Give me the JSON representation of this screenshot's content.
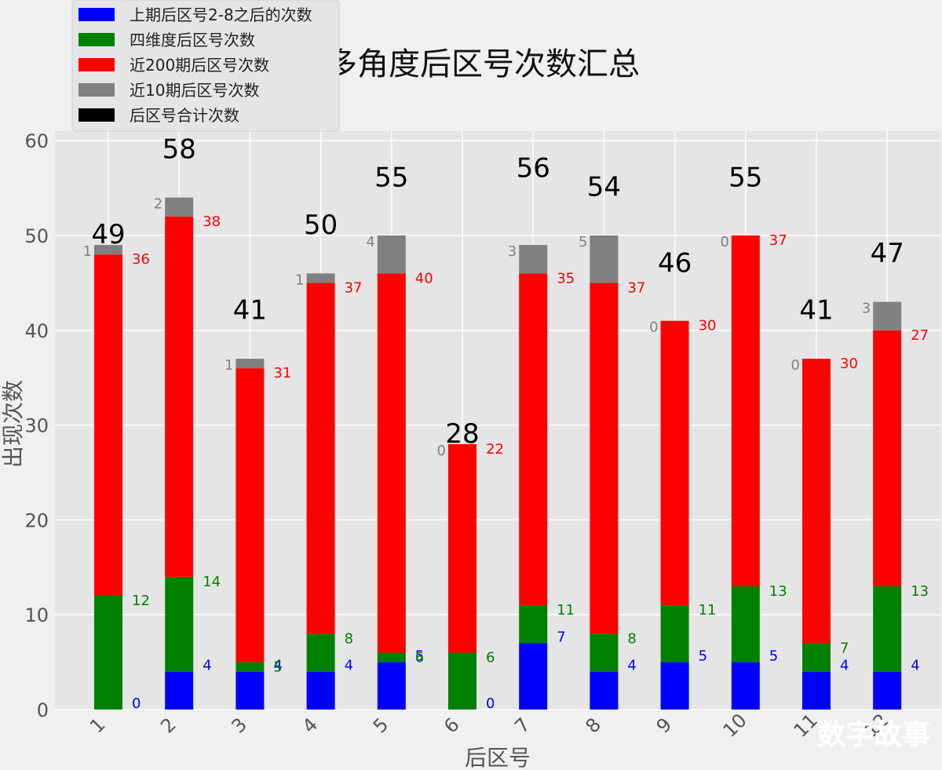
{
  "chart_data": {
    "type": "bar",
    "title": "多角度后区号次数汇总",
    "xlabel": "后区号",
    "ylabel": "出现次数",
    "ylim": [
      0,
      61
    ],
    "yticks": [
      0,
      10,
      20,
      30,
      40,
      50,
      60
    ],
    "categories": [
      "1",
      "2",
      "3",
      "4",
      "5",
      "6",
      "7",
      "8",
      "9",
      "10",
      "11",
      "12"
    ],
    "grid": true,
    "legend_position": "top-left",
    "series": [
      {
        "name": "上期后区号2-8之后的次数",
        "color": "#0000ff",
        "values": [
          0,
          4,
          4,
          4,
          5,
          0,
          7,
          4,
          5,
          5,
          4,
          4
        ]
      },
      {
        "name": "四维度后区号次数",
        "color": "#008000",
        "values": [
          12,
          14,
          5,
          8,
          6,
          6,
          11,
          8,
          11,
          13,
          7,
          13
        ]
      },
      {
        "name": "近200期后区号次数",
        "color": "#ff0000",
        "values": [
          36,
          38,
          31,
          37,
          40,
          22,
          35,
          37,
          30,
          37,
          30,
          27
        ]
      },
      {
        "name": "近10期后区号次数",
        "color": "#808080",
        "values": [
          1,
          2,
          1,
          1,
          4,
          0,
          3,
          5,
          0,
          0,
          0,
          3
        ]
      },
      {
        "name": "后区号合计次数",
        "color": "#000000",
        "values": [
          49,
          58,
          41,
          50,
          55,
          28,
          56,
          54,
          46,
          55,
          41,
          47
        ]
      }
    ]
  },
  "watermark": "数字故事"
}
